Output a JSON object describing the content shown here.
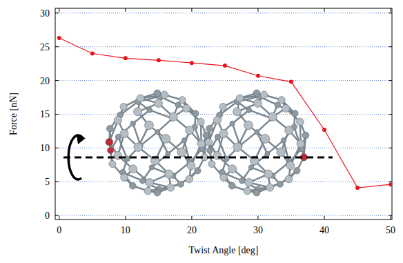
{
  "chart_data": {
    "type": "line",
    "x_label": "Twist Angle [deg]",
    "y_label": "Force [nN]",
    "x": [
      0,
      5,
      10,
      15,
      20,
      25,
      30,
      35,
      40,
      45,
      50
    ],
    "series": [
      {
        "name": "Force",
        "color": "#e8141e",
        "marker": "circle",
        "line_style": "solid",
        "values": [
          26.3,
          24.0,
          23.3,
          23.0,
          22.6,
          22.2,
          20.7,
          19.8,
          12.7,
          4.1,
          4.6
        ]
      }
    ],
    "xlim": [
      -0.6,
      50.2
    ],
    "ylim": [
      -0.6,
      30.7
    ],
    "xticks": [
      0,
      10,
      20,
      30,
      40,
      50
    ],
    "yticks": [
      0,
      5,
      10,
      15,
      20,
      25,
      30
    ],
    "grid": true
  }
}
